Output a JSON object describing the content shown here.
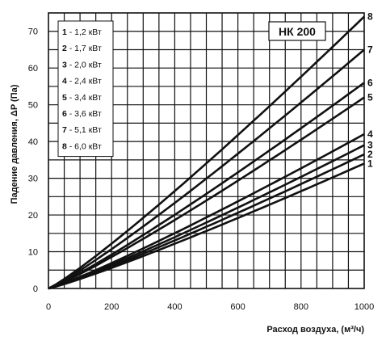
{
  "chart_data": {
    "type": "line",
    "title": "НК 200",
    "xlabel": "Расход воздуха, (м³/ч)",
    "ylabel": "Падение давления, ΔP (Па)",
    "xlim": [
      0,
      1000
    ],
    "ylim": [
      0,
      75
    ],
    "x_ticks": [
      "0",
      "200",
      "400",
      "600",
      "800",
      "1000"
    ],
    "y_ticks": [
      "0",
      "10",
      "20",
      "30",
      "40",
      "50",
      "60",
      "70"
    ],
    "grid": true,
    "legend_position": "top-left",
    "series": [
      {
        "label": "1",
        "legend": "- 1,2 кВт",
        "x": [
          0,
          1000
        ],
        "y": [
          0,
          34
        ]
      },
      {
        "label": "2",
        "legend": "- 1,7 кВт",
        "x": [
          0,
          1000
        ],
        "y": [
          0,
          36.5
        ]
      },
      {
        "label": "3",
        "legend": "- 2,0 кВт",
        "x": [
          0,
          1000
        ],
        "y": [
          0,
          39
        ]
      },
      {
        "label": "4",
        "legend": "- 2,4 кВт",
        "x": [
          0,
          1000
        ],
        "y": [
          0,
          42
        ]
      },
      {
        "label": "5",
        "legend": "- 3,4 кВт",
        "x": [
          0,
          1000
        ],
        "y": [
          0,
          52
        ]
      },
      {
        "label": "6",
        "legend": "- 3,6 кВт",
        "x": [
          0,
          1000
        ],
        "y": [
          0,
          56
        ]
      },
      {
        "label": "7",
        "legend": "- 5,1 кВт",
        "x": [
          0,
          1000
        ],
        "y": [
          0,
          65
        ]
      },
      {
        "label": "8",
        "legend": "- 6,0 кВт",
        "x": [
          0,
          1000
        ],
        "y": [
          0,
          74
        ]
      }
    ]
  }
}
